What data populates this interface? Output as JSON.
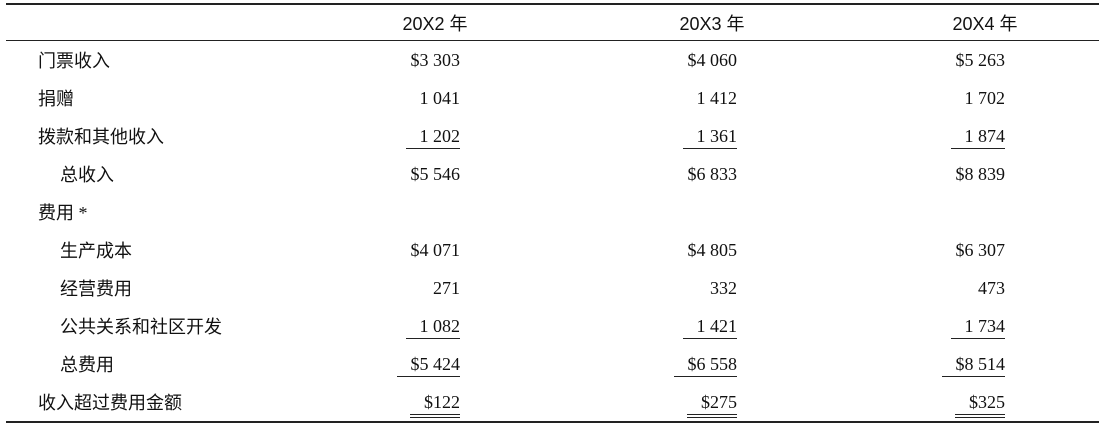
{
  "table": {
    "columns": [
      "20X2 年",
      "20X3 年",
      "20X4 年"
    ],
    "rows": [
      {
        "label": "门票收入",
        "values": [
          "$3 303",
          "$4 060",
          "$5 263"
        ]
      },
      {
        "label": "捐赠",
        "values": [
          "1 041",
          "1 412",
          "1 702"
        ]
      },
      {
        "label": "拨款和其他收入",
        "values": [
          "1 202",
          "1 361",
          "1 874"
        ]
      },
      {
        "label": "总收入",
        "values": [
          "$5 546",
          "$6 833",
          "$8 839"
        ]
      },
      {
        "label": "费用 *"
      },
      {
        "label": "生产成本",
        "values": [
          "$4 071",
          "$4 805",
          "$6 307"
        ]
      },
      {
        "label": "经营费用",
        "values": [
          "271",
          "332",
          "473"
        ]
      },
      {
        "label": "公共关系和社区开发",
        "values": [
          "1 082",
          "1 421",
          "1 734"
        ]
      },
      {
        "label": "总费用",
        "values": [
          "$5 424",
          "$6 558",
          "$8 514"
        ]
      },
      {
        "label": "收入超过费用金额",
        "values": [
          "$122",
          "$275",
          "$325"
        ]
      }
    ]
  }
}
